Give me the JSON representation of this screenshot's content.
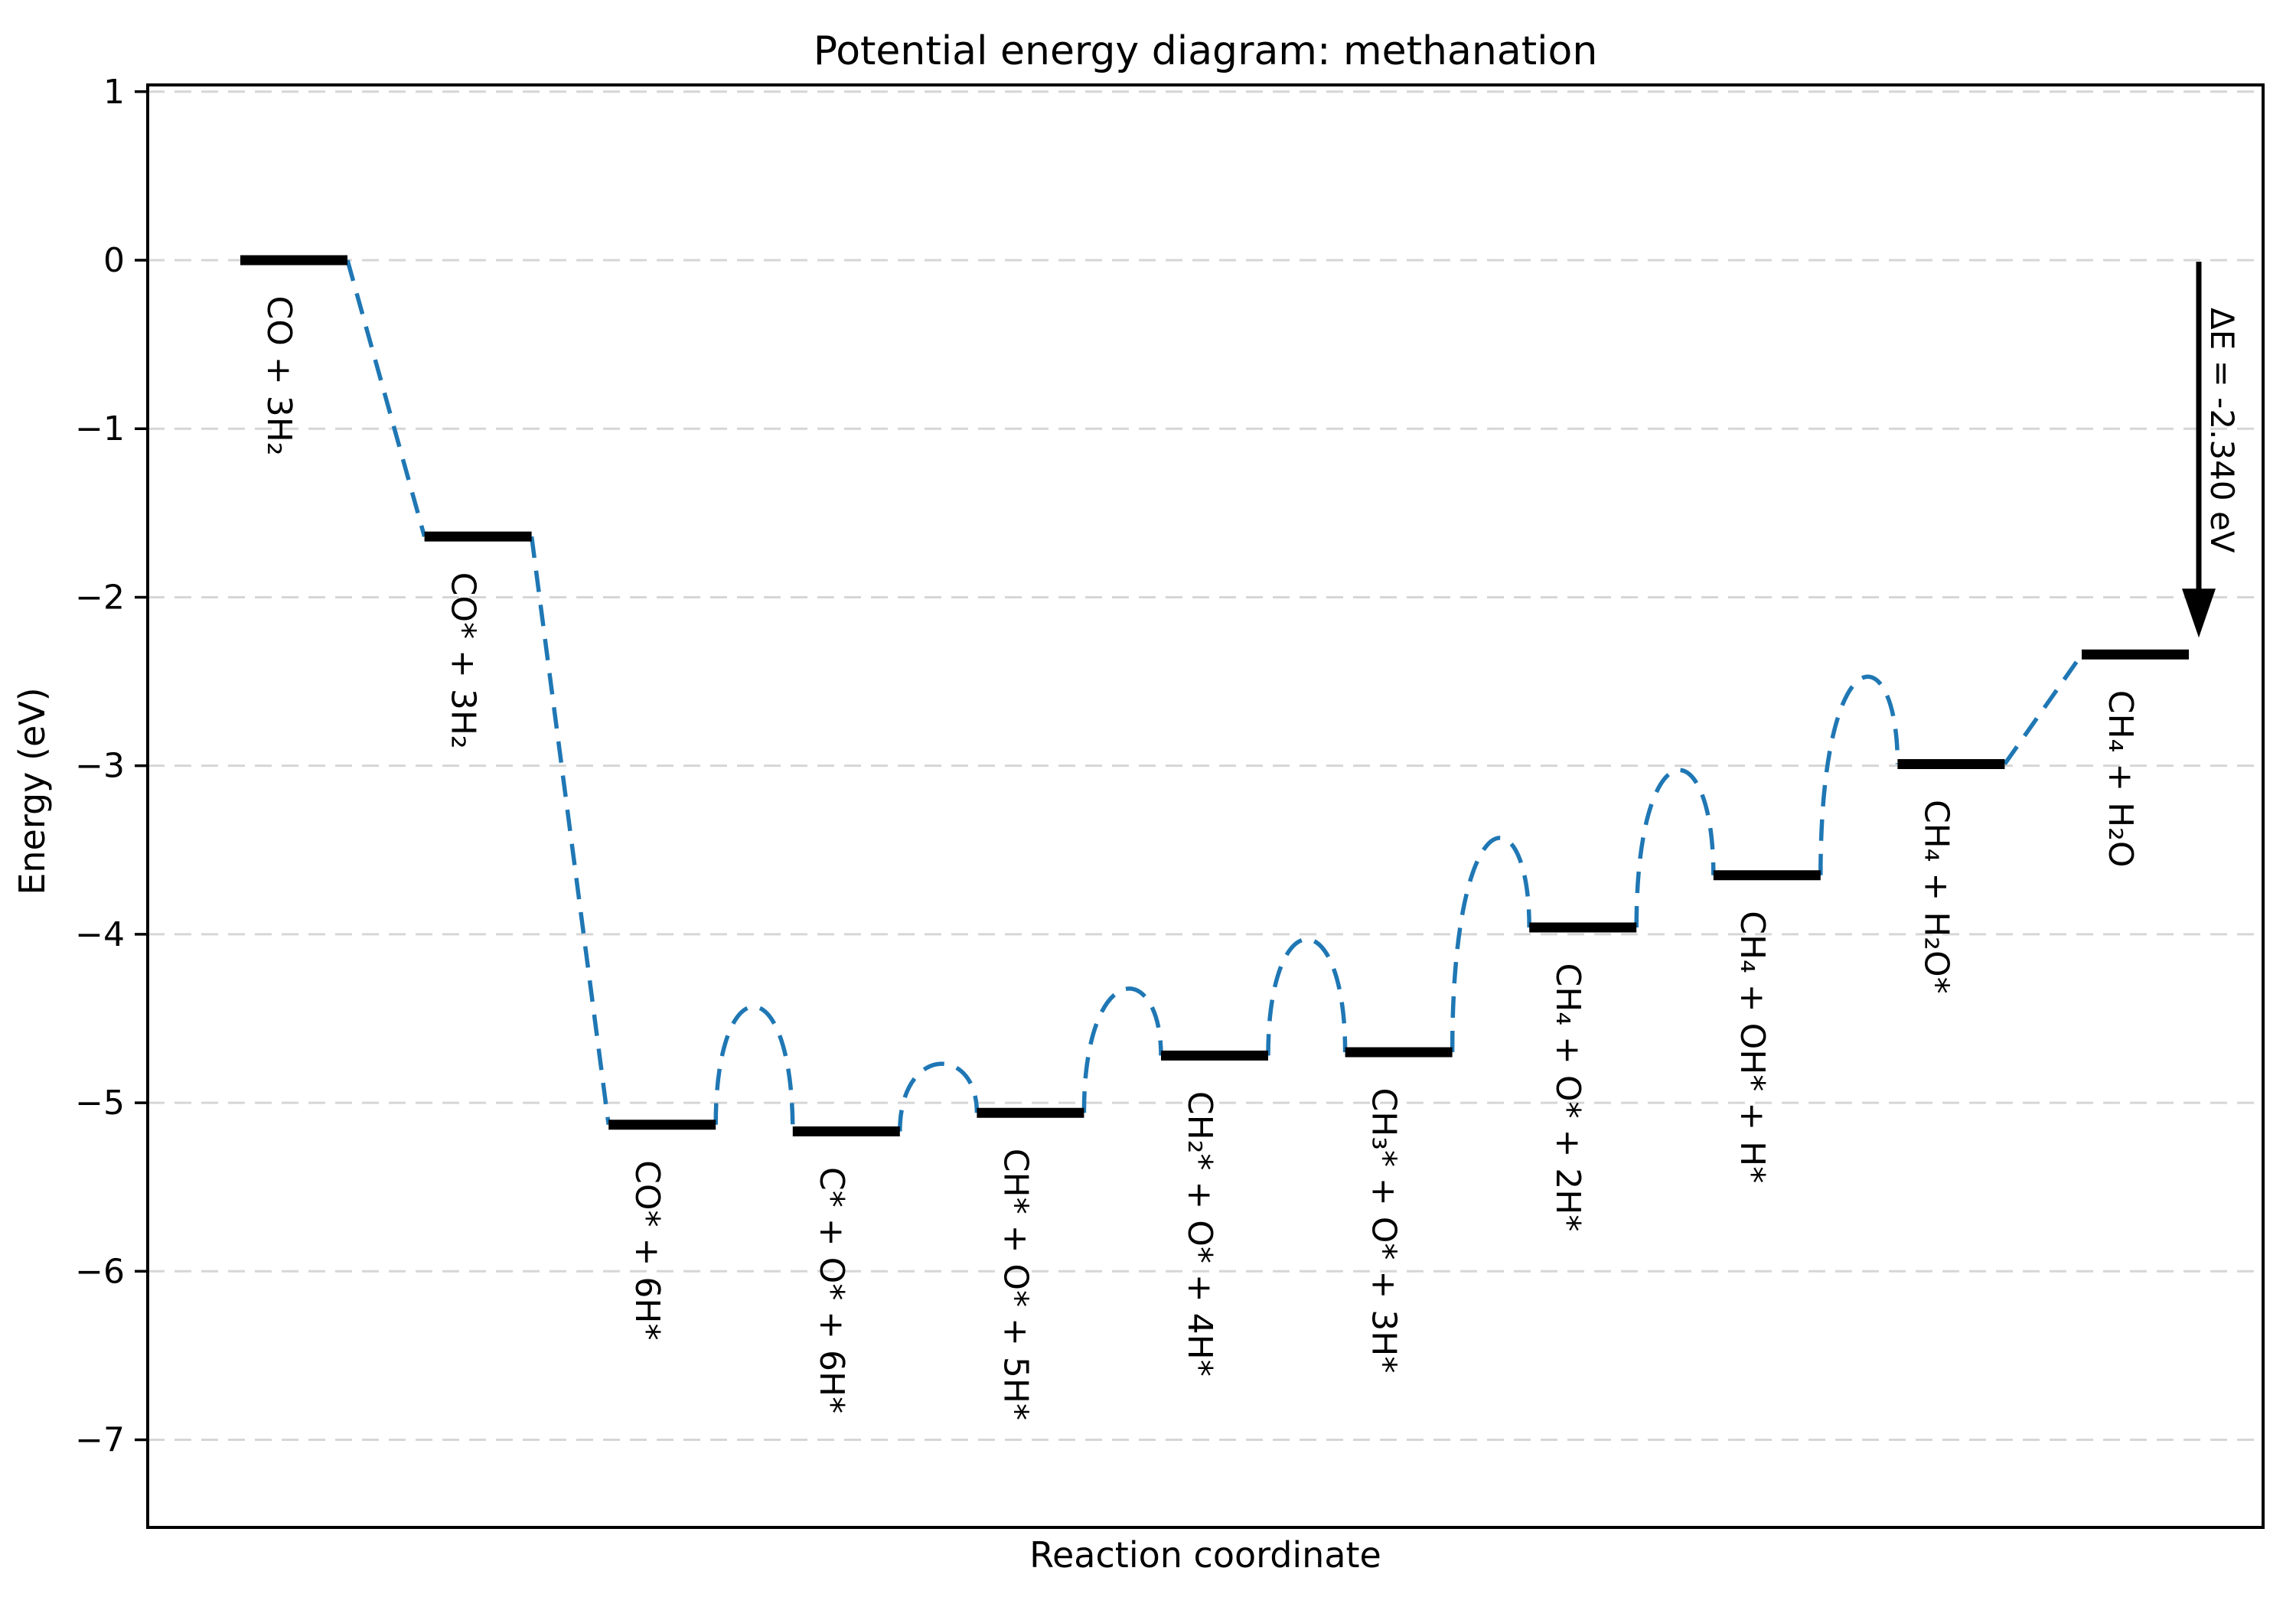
{
  "chart_data": {
    "type": "line",
    "variant": "potential-energy-diagram",
    "title": "Potential energy diagram: methanation",
    "xlabel": "Reaction coordinate",
    "ylabel": "Energy (eV)",
    "ylim": [
      -7.52,
      1.04
    ],
    "yticks": [
      1,
      0,
      -1,
      -2,
      -3,
      -4,
      -5,
      -6,
      -7
    ],
    "xticks": [],
    "grid": true,
    "grid_style": "dashed",
    "levels": [
      {
        "label": "CO + 3H₂",
        "energy_eV": 0.0
      },
      {
        "label": "CO* + 3H₂",
        "energy_eV": -1.64
      },
      {
        "label": "CO* + 6H*",
        "energy_eV": -5.13
      },
      {
        "label": "C* + O* + 6H*",
        "energy_eV": -5.17
      },
      {
        "label": "CH* + O* + 5H*",
        "energy_eV": -5.06
      },
      {
        "label": "CH₂* + O* + 4H*",
        "energy_eV": -4.72
      },
      {
        "label": "CH₃* + O* + 3H*",
        "energy_eV": -4.7
      },
      {
        "label": "CH₄ + O* + 2H*",
        "energy_eV": -3.96
      },
      {
        "label": "CH₄ + OH* + H*",
        "energy_eV": -3.65
      },
      {
        "label": "CH₄ + H₂O*",
        "energy_eV": -2.99
      },
      {
        "label": "CH₄ + H₂O",
        "energy_eV": -2.34
      }
    ],
    "connections": [
      {
        "from": 0,
        "to": 1,
        "style": "line"
      },
      {
        "from": 1,
        "to": 2,
        "style": "line"
      },
      {
        "from": 2,
        "to": 3,
        "style": "barrier",
        "peak_eV": -4.43
      },
      {
        "from": 3,
        "to": 4,
        "style": "barrier",
        "peak_eV": -4.77
      },
      {
        "from": 4,
        "to": 5,
        "style": "barrier",
        "peak_eV": -4.33
      },
      {
        "from": 5,
        "to": 6,
        "style": "barrier",
        "peak_eV": -4.03
      },
      {
        "from": 6,
        "to": 7,
        "style": "barrier",
        "peak_eV": -3.45
      },
      {
        "from": 7,
        "to": 8,
        "style": "barrier",
        "peak_eV": -3.03
      },
      {
        "from": 8,
        "to": 9,
        "style": "barrier",
        "peak_eV": -2.49
      },
      {
        "from": 9,
        "to": 10,
        "style": "line"
      }
    ],
    "annotation": {
      "text": "ΔE = -2.340 eV",
      "arrow_from_eV": 0.0,
      "arrow_to_eV": -2.34
    },
    "colors": {
      "level_bar": "#000000",
      "connector": "#1f77b4",
      "grid": "#d6d6d6",
      "spine": "#000000",
      "text": "#000000",
      "background": "#ffffff"
    },
    "legend": null
  }
}
